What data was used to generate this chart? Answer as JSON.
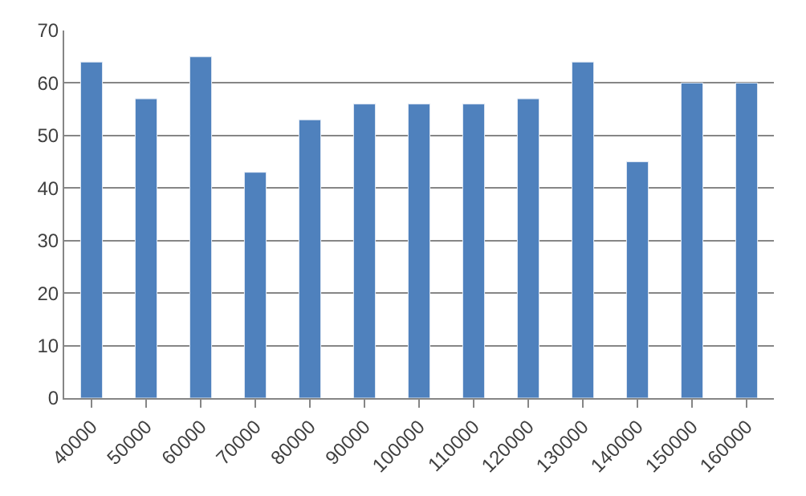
{
  "chart_data": {
    "type": "bar",
    "categories": [
      "40000",
      "50000",
      "60000",
      "70000",
      "80000",
      "90000",
      "100000",
      "110000",
      "120000",
      "130000",
      "140000",
      "150000",
      "160000"
    ],
    "values": [
      64,
      57,
      65,
      43,
      53,
      56,
      56,
      56,
      57,
      64,
      45,
      60,
      60
    ],
    "color": "#4f81bd",
    "ylim": [
      0,
      70
    ],
    "yticks": [
      0,
      10,
      20,
      30,
      40,
      50,
      60,
      70
    ],
    "grid": "y",
    "legend": false
  }
}
